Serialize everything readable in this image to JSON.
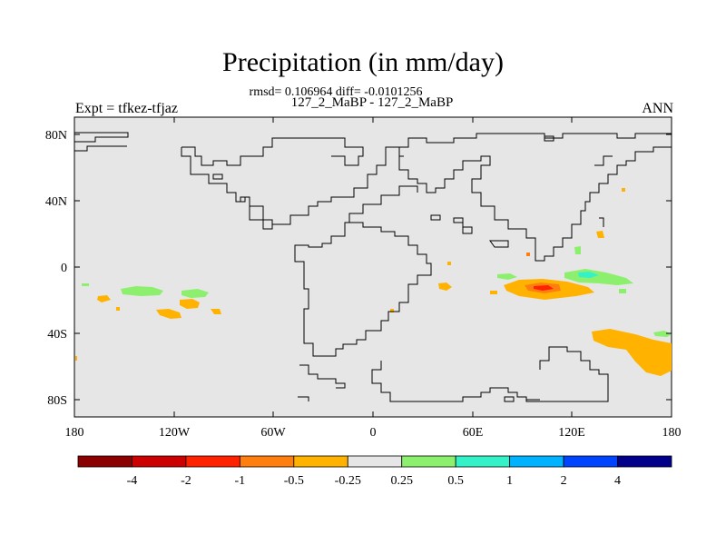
{
  "map": {
    "title": "Precipitation (in mm/day)",
    "stats": "rmsd= 0.106964  diff= -0.0101256",
    "subtitle": "127_2_MaBP - 127_2_MaBP",
    "left_label": "Expt = tfkez-tfjaz",
    "right_label": "ANN",
    "lat_labels": [
      "80N",
      "40N",
      "0",
      "40S",
      "80S"
    ],
    "lon_labels": [
      "180",
      "120W",
      "60W",
      "0",
      "60E",
      "120E",
      "180"
    ],
    "background_color": "#e6e6e6"
  },
  "colorbar": {
    "colors": [
      "#8b0000",
      "#cc0000",
      "#ff2200",
      "#ff7f0e",
      "#ffb300",
      "#e6e6e6",
      "#8cf06e",
      "#33f2c8",
      "#00b2ff",
      "#0044ff",
      "#00008b"
    ],
    "labels": [
      "-4",
      "-2",
      "-1",
      "-0.5",
      "-0.25",
      "0.25",
      "0.5",
      "1",
      "2",
      "4"
    ]
  }
}
